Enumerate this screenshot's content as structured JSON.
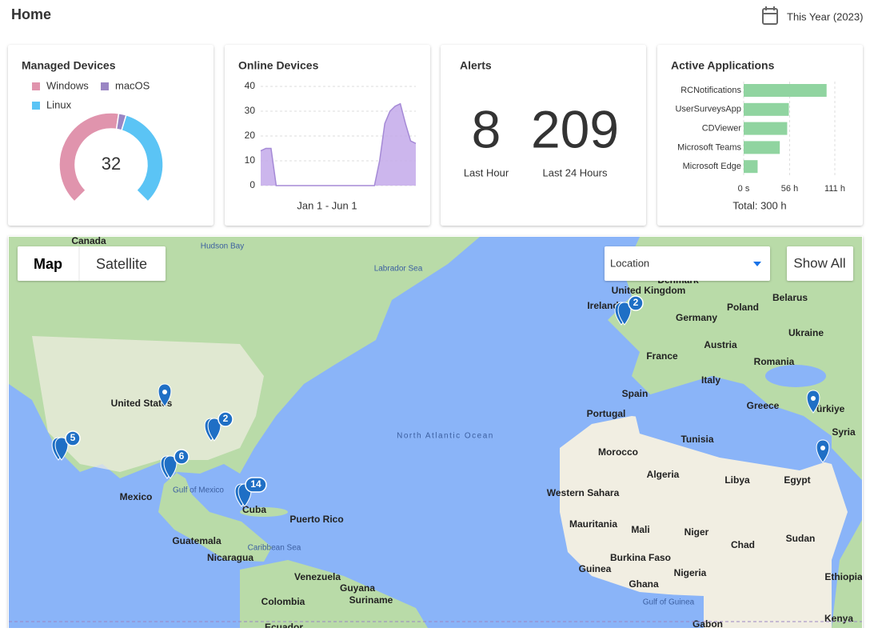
{
  "header": {
    "title": "Home",
    "period": "This Year (2023)"
  },
  "managed_devices": {
    "title": "Managed Devices",
    "type": "pie",
    "total": 32,
    "series": [
      {
        "name": "Windows",
        "color": "#e094ad",
        "value": 17
      },
      {
        "name": "macOS",
        "color": "#9a86c4",
        "value": 1
      },
      {
        "name": "Linux",
        "color": "#5bc4f5",
        "value": 14
      }
    ]
  },
  "online_devices": {
    "title": "Online Devices",
    "type": "area",
    "x_label": "Jan 1 - Jun 1",
    "color": "#c3a9ea",
    "values": [
      14,
      15,
      15,
      0,
      0,
      0,
      0,
      0,
      0,
      0,
      0,
      0,
      0,
      0,
      0,
      0,
      0,
      0,
      0,
      0,
      0,
      0,
      0,
      10,
      25,
      30,
      32,
      33,
      25,
      18,
      17
    ],
    "ylim": [
      0,
      40
    ],
    "yticks": [
      0,
      10,
      20,
      30,
      40
    ]
  },
  "alerts": {
    "title": "Alerts",
    "items": [
      {
        "value": 8,
        "label": "Last Hour"
      },
      {
        "value": 209,
        "label": "Last 24 Hours"
      }
    ]
  },
  "active_applications": {
    "title": "Active Applications",
    "type": "bar",
    "color": "#90d4a0",
    "categories": [
      "RCNotifications",
      "UserSurveysApp",
      "CDViewer",
      "Microsoft Teams",
      "Microsoft Edge"
    ],
    "values": [
      101,
      55,
      53,
      44,
      17
    ],
    "xlim": [
      0,
      111
    ],
    "xticks": [
      {
        "value": 0,
        "label": "0 s"
      },
      {
        "value": 56,
        "label": "56 h"
      },
      {
        "value": 111,
        "label": "111 h"
      }
    ],
    "total": "Total: 300 h"
  },
  "map": {
    "buttons": [
      "Map",
      "Satellite"
    ],
    "dropdown": "Location",
    "show_all": "Show All",
    "labels": [
      "Canada",
      "Hudson Bay",
      "Labrador Sea",
      "United States",
      "Mexico",
      "Gulf of Mexico",
      "Cuba",
      "Puerto Rico",
      "Guatemala",
      "Nicaragua",
      "Caribbean Sea",
      "Venezuela",
      "Guyana",
      "Suriname",
      "Colombia",
      "Ecuador",
      "North Atlantic Ocean",
      "Ireland",
      "United Kingdom",
      "Denmark",
      "Poland",
      "Belarus",
      "Germany",
      "Ukraine",
      "Austria",
      "France",
      "Romania",
      "Italy",
      "Spain",
      "Portugal",
      "Greece",
      "Türkiye",
      "Syria",
      "Tunisia",
      "Morocco",
      "Algeria",
      "Libya",
      "Egypt",
      "Western Sahara",
      "Mauritania",
      "Mali",
      "Niger",
      "Chad",
      "Sudan",
      "Burkina Faso",
      "Guinea",
      "Ghana",
      "Nigeria",
      "Ethiopia",
      "Gulf of Guinea",
      "Gabon",
      "Kenya"
    ],
    "clusters": [
      2,
      5,
      2,
      6,
      14
    ]
  }
}
